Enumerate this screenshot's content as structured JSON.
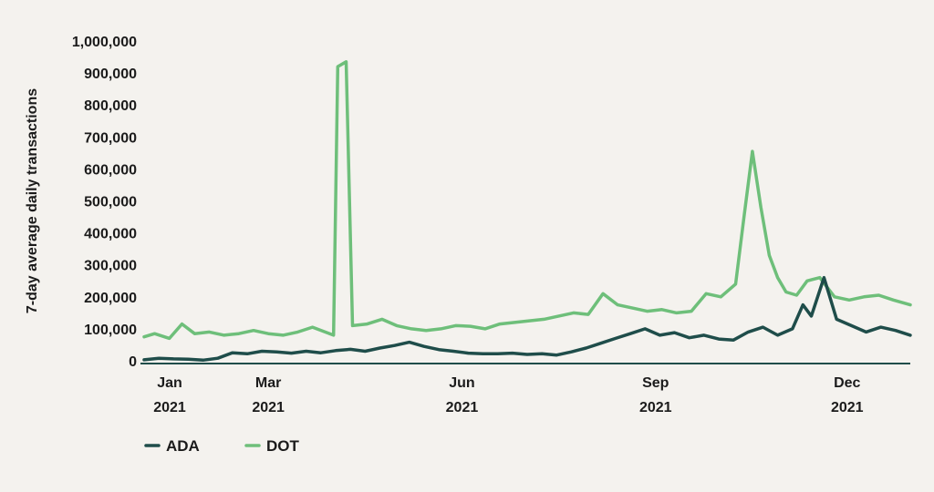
{
  "chart_data": {
    "type": "line",
    "title": "",
    "xlabel": "",
    "ylabel": "7-day average daily transactions",
    "ylim": [
      0,
      1000000
    ],
    "y_ticks": [
      {
        "value": 0,
        "label": "0"
      },
      {
        "value": 100000,
        "label": "100,000"
      },
      {
        "value": 200000,
        "label": "200,000"
      },
      {
        "value": 300000,
        "label": "300,000"
      },
      {
        "value": 400000,
        "label": "400,000"
      },
      {
        "value": 500000,
        "label": "500,000"
      },
      {
        "value": 600000,
        "label": "600,000"
      },
      {
        "value": 700000,
        "label": "700,000"
      },
      {
        "value": 800000,
        "label": "800,000"
      },
      {
        "value": 900000,
        "label": "900,000"
      },
      {
        "value": 1000000,
        "label": "1,000,000"
      }
    ],
    "xlim": [
      "2021-01-01",
      "2021-12-31"
    ],
    "x_ticks": [
      {
        "date": "2021-01-01",
        "month": "Jan",
        "year": "2021"
      },
      {
        "date": "2021-03-01",
        "month": "Mar",
        "year": "2021"
      },
      {
        "date": "2021-06-01",
        "month": "Jun",
        "year": "2021"
      },
      {
        "date": "2021-09-01",
        "month": "Sep",
        "year": "2021"
      },
      {
        "date": "2021-12-01",
        "month": "Dec",
        "year": "2021"
      }
    ],
    "grid": false,
    "legend_position": "bottom-left",
    "series": [
      {
        "name": "ADA",
        "color": "#1f4d4a",
        "points": [
          [
            "2021-01-01",
            3000
          ],
          [
            "2021-01-08",
            8000
          ],
          [
            "2021-01-15",
            6000
          ],
          [
            "2021-01-22",
            5000
          ],
          [
            "2021-01-29",
            2000
          ],
          [
            "2021-02-05",
            8000
          ],
          [
            "2021-02-12",
            25000
          ],
          [
            "2021-02-19",
            22000
          ],
          [
            "2021-02-26",
            30000
          ],
          [
            "2021-03-05",
            28000
          ],
          [
            "2021-03-12",
            24000
          ],
          [
            "2021-03-19",
            30000
          ],
          [
            "2021-03-26",
            25000
          ],
          [
            "2021-04-02",
            32000
          ],
          [
            "2021-04-09",
            36000
          ],
          [
            "2021-04-16",
            30000
          ],
          [
            "2021-04-23",
            40000
          ],
          [
            "2021-04-30",
            48000
          ],
          [
            "2021-05-07",
            58000
          ],
          [
            "2021-05-14",
            45000
          ],
          [
            "2021-05-21",
            35000
          ],
          [
            "2021-05-28",
            30000
          ],
          [
            "2021-06-04",
            24000
          ],
          [
            "2021-06-11",
            22000
          ],
          [
            "2021-06-18",
            22000
          ],
          [
            "2021-06-25",
            24000
          ],
          [
            "2021-07-02",
            20000
          ],
          [
            "2021-07-09",
            22000
          ],
          [
            "2021-07-16",
            18000
          ],
          [
            "2021-07-23",
            28000
          ],
          [
            "2021-07-30",
            40000
          ],
          [
            "2021-08-06",
            55000
          ],
          [
            "2021-08-13",
            70000
          ],
          [
            "2021-08-20",
            85000
          ],
          [
            "2021-08-27",
            100000
          ],
          [
            "2021-09-03",
            80000
          ],
          [
            "2021-09-10",
            88000
          ],
          [
            "2021-09-17",
            72000
          ],
          [
            "2021-09-24",
            80000
          ],
          [
            "2021-10-01",
            68000
          ],
          [
            "2021-10-08",
            65000
          ],
          [
            "2021-10-15",
            90000
          ],
          [
            "2021-10-22",
            105000
          ],
          [
            "2021-10-29",
            80000
          ],
          [
            "2021-11-05",
            100000
          ],
          [
            "2021-11-10",
            175000
          ],
          [
            "2021-11-14",
            140000
          ],
          [
            "2021-11-20",
            260000
          ],
          [
            "2021-11-26",
            130000
          ],
          [
            "2021-12-03",
            110000
          ],
          [
            "2021-12-10",
            90000
          ],
          [
            "2021-12-17",
            105000
          ],
          [
            "2021-12-24",
            95000
          ],
          [
            "2021-12-31",
            80000
          ]
        ]
      },
      {
        "name": "DOT",
        "color": "#6ebf7a",
        "points": [
          [
            "2021-01-01",
            75000
          ],
          [
            "2021-01-06",
            85000
          ],
          [
            "2021-01-13",
            70000
          ],
          [
            "2021-01-19",
            115000
          ],
          [
            "2021-01-25",
            85000
          ],
          [
            "2021-02-01",
            90000
          ],
          [
            "2021-02-08",
            80000
          ],
          [
            "2021-02-15",
            85000
          ],
          [
            "2021-02-22",
            95000
          ],
          [
            "2021-03-01",
            85000
          ],
          [
            "2021-03-08",
            80000
          ],
          [
            "2021-03-15",
            90000
          ],
          [
            "2021-03-22",
            105000
          ],
          [
            "2021-03-28",
            90000
          ],
          [
            "2021-04-01",
            80000
          ],
          [
            "2021-04-03",
            920000
          ],
          [
            "2021-04-07",
            935000
          ],
          [
            "2021-04-10",
            110000
          ],
          [
            "2021-04-17",
            115000
          ],
          [
            "2021-04-24",
            130000
          ],
          [
            "2021-05-01",
            110000
          ],
          [
            "2021-05-08",
            100000
          ],
          [
            "2021-05-15",
            95000
          ],
          [
            "2021-05-22",
            100000
          ],
          [
            "2021-05-29",
            110000
          ],
          [
            "2021-06-05",
            108000
          ],
          [
            "2021-06-12",
            100000
          ],
          [
            "2021-06-19",
            115000
          ],
          [
            "2021-06-26",
            120000
          ],
          [
            "2021-07-03",
            125000
          ],
          [
            "2021-07-10",
            130000
          ],
          [
            "2021-07-17",
            140000
          ],
          [
            "2021-07-24",
            150000
          ],
          [
            "2021-07-31",
            145000
          ],
          [
            "2021-08-07",
            210000
          ],
          [
            "2021-08-14",
            175000
          ],
          [
            "2021-08-21",
            165000
          ],
          [
            "2021-08-28",
            155000
          ],
          [
            "2021-09-04",
            160000
          ],
          [
            "2021-09-11",
            150000
          ],
          [
            "2021-09-18",
            155000
          ],
          [
            "2021-09-25",
            210000
          ],
          [
            "2021-10-02",
            200000
          ],
          [
            "2021-10-09",
            240000
          ],
          [
            "2021-10-13",
            450000
          ],
          [
            "2021-10-17",
            655000
          ],
          [
            "2021-10-21",
            480000
          ],
          [
            "2021-10-25",
            330000
          ],
          [
            "2021-10-29",
            260000
          ],
          [
            "2021-11-02",
            215000
          ],
          [
            "2021-11-07",
            205000
          ],
          [
            "2021-11-12",
            250000
          ],
          [
            "2021-11-18",
            260000
          ],
          [
            "2021-11-25",
            200000
          ],
          [
            "2021-12-02",
            190000
          ],
          [
            "2021-12-09",
            200000
          ],
          [
            "2021-12-16",
            205000
          ],
          [
            "2021-12-23",
            190000
          ],
          [
            "2021-12-31",
            175000
          ]
        ]
      }
    ]
  }
}
